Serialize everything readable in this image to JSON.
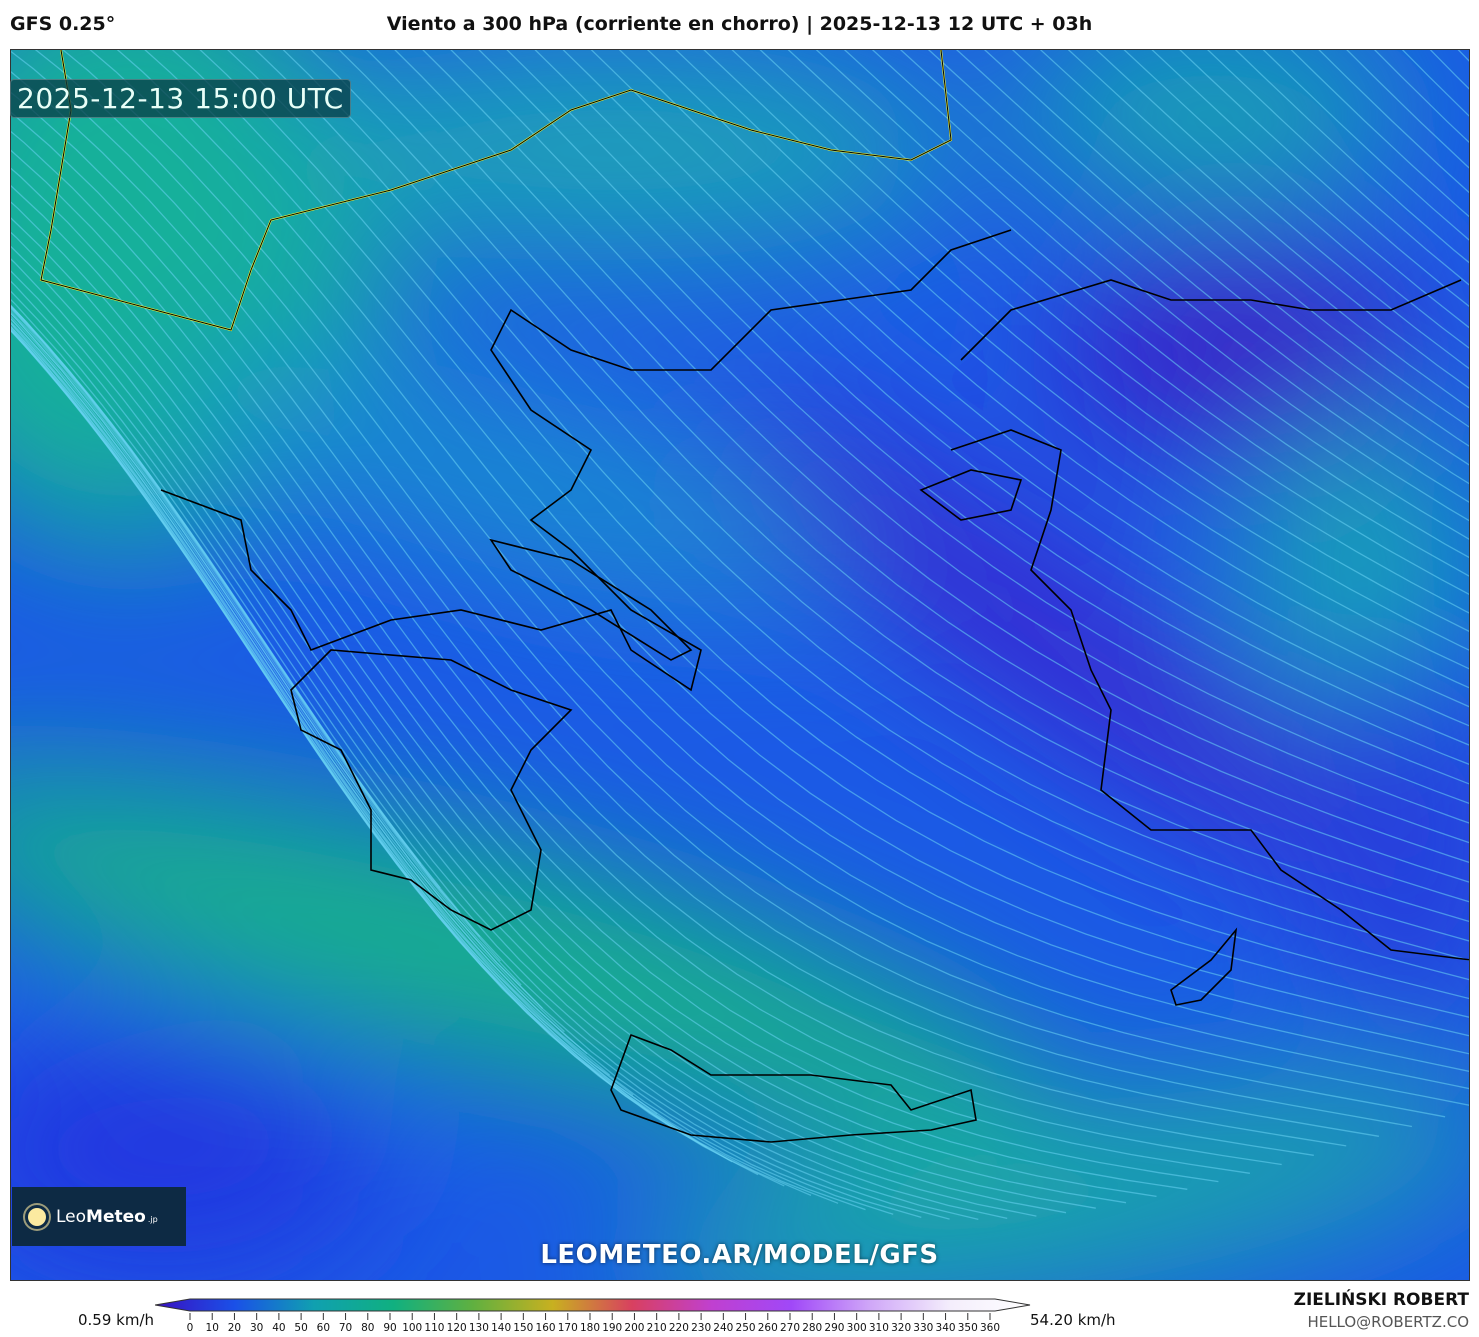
{
  "header": {
    "model": "GFS 0.25°",
    "title": "Viento a 300 hPa (corriente en chorro) | 2025-12-13 12 UTC + 03h"
  },
  "map": {
    "valid_time": "2025-12-13 15:00 UTC",
    "watermark_url": "LEOMETEO.AR/MODEL/GFS",
    "logo": {
      "text_light": "Leo",
      "text_bold": "Meteo",
      "suffix": ".jp"
    }
  },
  "colorbar": {
    "min_label": "0.59 km/h",
    "max_label": "54.20 km/h",
    "ticks": [
      "0",
      "10",
      "20",
      "30",
      "40",
      "50",
      "60",
      "70",
      "80",
      "90",
      "100",
      "110",
      "120",
      "130",
      "140",
      "150",
      "160",
      "170",
      "180",
      "190",
      "200",
      "210",
      "220",
      "230",
      "240",
      "250",
      "260",
      "270",
      "280",
      "290",
      "300",
      "310",
      "320",
      "330",
      "340",
      "350",
      "360"
    ],
    "colors": [
      "#3a10c0",
      "#1a50e8",
      "#10a0b0",
      "#10b080",
      "#60b040",
      "#c8b020",
      "#d84060",
      "#c040d0",
      "#a048f8",
      "#d0a8f8",
      "#f4eefc",
      "#ffffff"
    ]
  },
  "footer": {
    "author": "ZIELIŃSKI ROBERT",
    "email": "HELLO@ROBERTZ.CO"
  }
}
